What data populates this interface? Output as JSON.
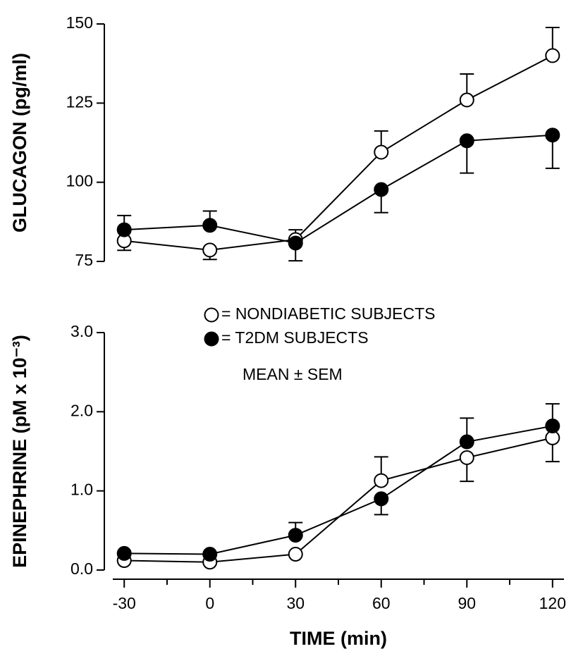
{
  "chart_data": [
    {
      "type": "line",
      "ylabel": "GLUCAGON (pg/ml)",
      "x": [
        -30,
        0,
        30,
        60,
        90,
        120
      ],
      "xlim": [
        -34,
        124
      ],
      "ylim": [
        75,
        150
      ],
      "yticks": [
        75,
        100,
        125,
        150
      ],
      "series": [
        {
          "color": "#000000",
          "marker": "open",
          "values": [
            81.5,
            78.6,
            81.9,
            109.5,
            126,
            140
          ],
          "errors": [
            3,
            3,
            3.1,
            6.7,
            8.2,
            8.9
          ]
        },
        {
          "color": "#000000",
          "marker": "filled",
          "values": [
            85,
            86.4,
            80.8,
            97.7,
            113.1,
            114.9
          ],
          "errors": [
            4.5,
            4.5,
            5.6,
            7.3,
            10.2,
            10.5
          ]
        }
      ]
    },
    {
      "type": "line",
      "ylabel": "EPINEPHRINE (pM x 10⁻³)",
      "xlabel": "TIME (min)",
      "annotation": "MEAN ± SEM",
      "x": [
        -30,
        0,
        30,
        60,
        90,
        120
      ],
      "xlim": [
        -34,
        124
      ],
      "xticks": [
        -30,
        0,
        30,
        60,
        90,
        120
      ],
      "xminorticks": [
        -15,
        15,
        45,
        75,
        105
      ],
      "ylim": [
        0,
        3
      ],
      "yticks": [
        {
          "value": 0,
          "label": "0.0"
        },
        {
          "value": 1,
          "label": "1.0"
        },
        {
          "value": 2,
          "label": "2.0"
        },
        {
          "value": 3,
          "label": "3.0"
        }
      ],
      "series": [
        {
          "name": "= NONDIABETIC SUBJECTS",
          "color": "#000000",
          "marker": "open",
          "values": [
            0.12,
            0.1,
            0.2,
            1.13,
            1.42,
            1.67
          ],
          "errors": [
            null,
            null,
            null,
            0.3,
            0.3,
            0.3
          ]
        },
        {
          "name": "= T2DM SUBJECTS",
          "color": "#000000",
          "marker": "filled",
          "values": [
            0.21,
            0.2,
            0.44,
            0.9,
            1.62,
            1.82
          ],
          "errors": [
            null,
            null,
            0.16,
            0.2,
            0.3,
            0.28
          ]
        }
      ]
    }
  ]
}
